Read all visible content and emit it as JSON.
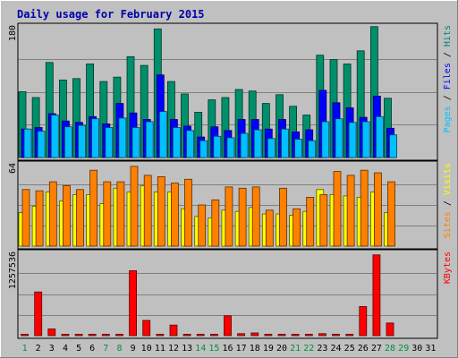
{
  "chart_data": {
    "type": "bar",
    "title": "Daily usage for February 2015",
    "x": [
      "1",
      "2",
      "3",
      "4",
      "5",
      "6",
      "7",
      "8",
      "9",
      "10",
      "11",
      "12",
      "13",
      "14",
      "15",
      "16",
      "17",
      "18",
      "19",
      "20",
      "21",
      "22",
      "23",
      "24",
      "25",
      "26",
      "27",
      "28",
      "29",
      "30",
      "31"
    ],
    "weekend_days": [
      1,
      7,
      8,
      14,
      15,
      21,
      22,
      28,
      29
    ],
    "panels": [
      {
        "name": "hits-files-pages",
        "ymax_label": "180",
        "ymax": 180,
        "ylabel_parts": [
          {
            "text": "Pages",
            "color": "#00c0ff"
          },
          {
            "text": " / ",
            "color": "#000000"
          },
          {
            "text": "Files",
            "color": "#0000ff"
          },
          {
            "text": " / ",
            "color": "#000000"
          },
          {
            "text": "Hits",
            "color": "#008080"
          }
        ],
        "series": [
          {
            "name": "Hits",
            "color": "#008f6b",
            "values": [
              90,
              82,
              130,
              106,
              108,
              128,
              104,
              110,
              138,
              126,
              176,
              104,
              87,
              62,
              79,
              82,
              93,
              91,
              74,
              86,
              70,
              58,
              140,
              134,
              128,
              146,
              179,
              81,
              0,
              0,
              0
            ]
          },
          {
            "name": "Files",
            "color": "#0000ff",
            "values": [
              39,
              41,
              60,
              50,
              48,
              56,
              46,
              74,
              61,
              52,
              113,
              52,
              43,
              28,
              42,
              37,
              52,
              52,
              39,
              52,
              35,
              38,
              92,
              75,
              68,
              55,
              84,
              40,
              0,
              0,
              0
            ]
          },
          {
            "name": "Pages",
            "color": "#00c0ff",
            "values": [
              39,
              36,
              58,
              42,
              44,
              53,
              41,
              54,
              41,
              49,
              63,
              41,
              37,
              23,
              29,
              27,
              33,
              38,
              26,
              39,
              25,
              23,
              49,
              53,
              48,
              49,
              56,
              31,
              0,
              0,
              0
            ]
          }
        ]
      },
      {
        "name": "visits-sites",
        "ymax_label": "64",
        "ymax": 64,
        "ylabel_parts": [
          {
            "text": "Sites",
            "color": "#ff8000"
          },
          {
            "text": " / ",
            "color": "#000000"
          },
          {
            "text": "Visits",
            "color": "#ffff00"
          }
        ],
        "series": [
          {
            "name": "Visits",
            "color": "#ffff00",
            "values": [
              26,
              31,
              42,
              35,
              40,
              40,
              33,
              45,
              42,
              47,
              42,
              42,
              29,
              23,
              22,
              28,
              27,
              30,
              25,
              25,
              24,
              27,
              44,
              40,
              39,
              38,
              42,
              26,
              0,
              0,
              0
            ]
          },
          {
            "name": "Sites",
            "color": "#ff8000",
            "values": [
              44,
              43,
              50,
              47,
              44,
              59,
              50,
              50,
              62,
              55,
              54,
              49,
              52,
              32,
              36,
              46,
              45,
              46,
              28,
              45,
              29,
              38,
              40,
              58,
              55,
              59,
              57,
              50,
              0,
              0,
              0
            ]
          }
        ]
      },
      {
        "name": "kbytes",
        "ymax_label": "1257536",
        "ymax": 1257536,
        "ylabel_parts": [
          {
            "text": "KBytes",
            "color": "#ff0000"
          }
        ],
        "series": [
          {
            "name": "KBytes",
            "color": "#ff0000",
            "values": [
              20000,
              660000,
              100000,
              20000,
              20000,
              20000,
              20000,
              20000,
              980000,
              230000,
              20000,
              160000,
              20000,
              20000,
              20000,
              300000,
              30000,
              40000,
              20000,
              20000,
              20000,
              20000,
              30000,
              20000,
              20000,
              440000,
              1220000,
              190000,
              0,
              0,
              0
            ]
          }
        ]
      }
    ]
  }
}
